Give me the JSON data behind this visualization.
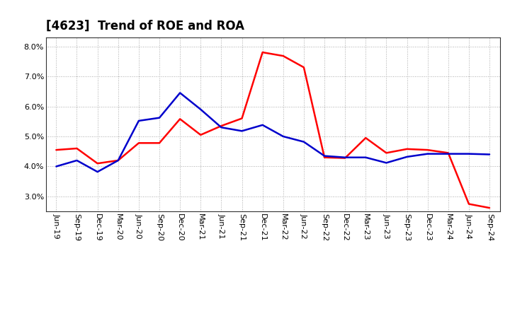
{
  "title": "[4623]  Trend of ROE and ROA",
  "x_labels": [
    "Jun-19",
    "Sep-19",
    "Dec-19",
    "Mar-20",
    "Jun-20",
    "Sep-20",
    "Dec-20",
    "Mar-21",
    "Jun-21",
    "Sep-21",
    "Dec-21",
    "Mar-22",
    "Jun-22",
    "Sep-22",
    "Dec-22",
    "Mar-23",
    "Jun-23",
    "Sep-23",
    "Dec-23",
    "Mar-24",
    "Jun-24",
    "Sep-24"
  ],
  "roe": [
    4.55,
    4.6,
    4.1,
    4.2,
    4.78,
    4.78,
    5.58,
    5.05,
    5.35,
    5.6,
    7.8,
    7.68,
    7.3,
    4.3,
    4.28,
    4.95,
    4.45,
    4.58,
    4.55,
    4.45,
    2.75,
    2.62
  ],
  "roa": [
    4.0,
    4.2,
    3.82,
    4.2,
    5.52,
    5.62,
    6.45,
    5.9,
    5.3,
    5.18,
    5.38,
    5.0,
    4.82,
    4.35,
    4.3,
    4.3,
    4.12,
    4.32,
    4.42,
    4.42,
    4.42,
    4.4
  ],
  "ylim": [
    2.5,
    8.3
  ],
  "yticks": [
    3.0,
    4.0,
    5.0,
    6.0,
    7.0,
    8.0
  ],
  "roe_color": "#ff0000",
  "roa_color": "#0000cc",
  "line_width": 1.8,
  "bg_color": "#ffffff",
  "grid_color": "#aaaaaa",
  "title_fontsize": 12,
  "tick_fontsize": 8,
  "legend_fontsize": 10
}
